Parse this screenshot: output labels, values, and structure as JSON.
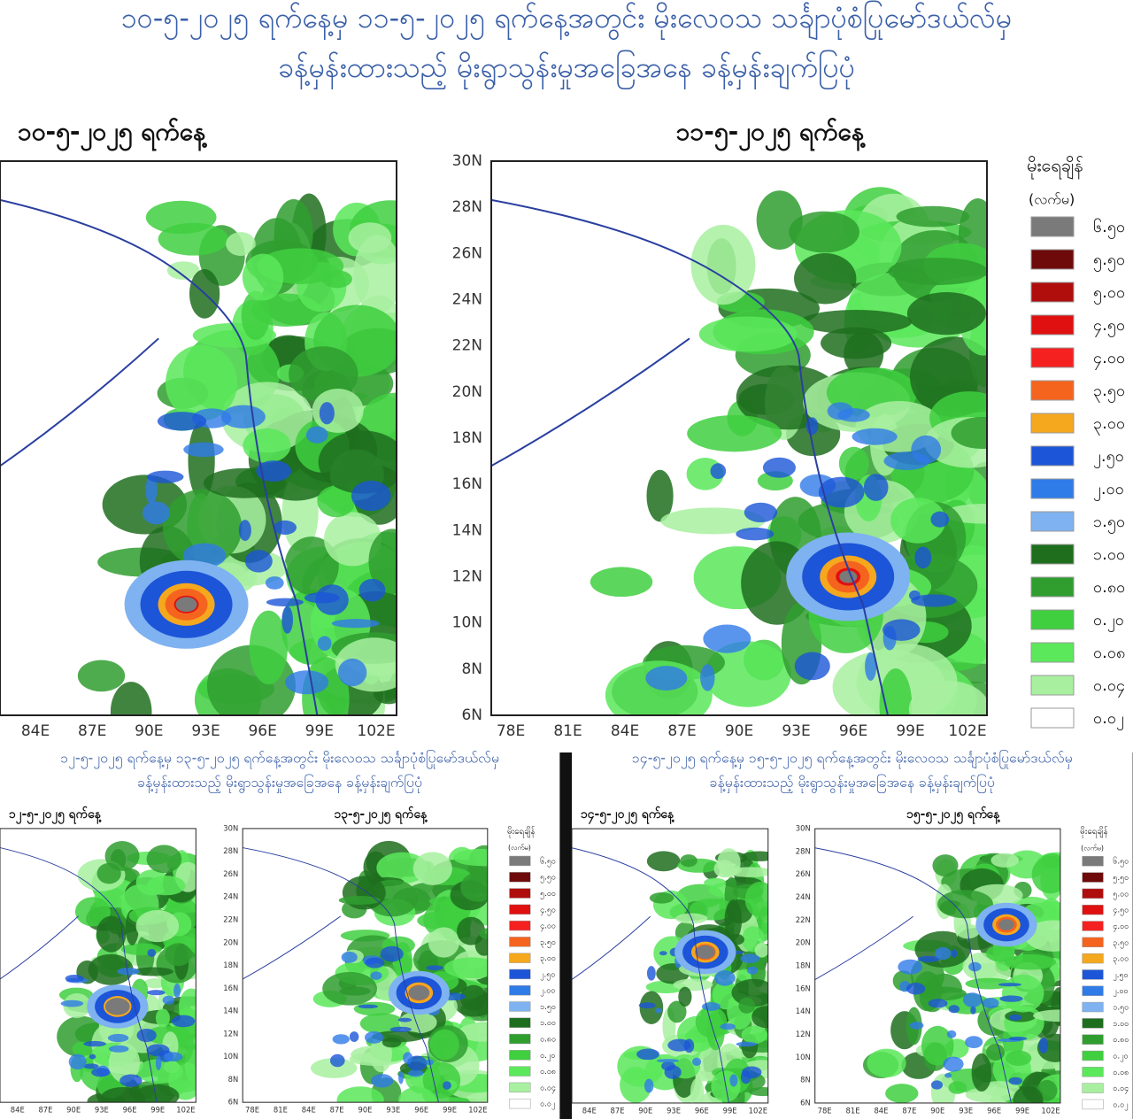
{
  "top": {
    "title": [
      "၁၀-၅-၂၀၂၅ ရက်နေ့မှ ၁၁-၅-၂၀၂၅ ရက်နေ့အတွင်း မိုးလေဝသ သင်္ချာပုံစံပြုမော်ဒယ်လ်မှ",
      "ခန့်မှန်းထားသည့် မိုးရွာသွန်းမှုအခြေအနေ ခန့်မှန်းချက်ပြပုံ"
    ],
    "maps": [
      {
        "title": "၁၀-၅-၂၀၂၅ ရက်နေ့",
        "lon_labels": [
          "84E",
          "87E",
          "90E",
          "93E",
          "96E",
          "99E",
          "102E"
        ]
      },
      {
        "title": "၁၁-၅-၂၀၂၅ ရက်နေ့",
        "lat_labels": [
          "30N",
          "28N",
          "26N",
          "24N",
          "22N",
          "20N",
          "18N",
          "16N",
          "14N",
          "12N",
          "10N",
          "8N",
          "6N"
        ],
        "lon_labels": [
          "78E",
          "81E",
          "84E",
          "87E",
          "90E",
          "93E",
          "96E",
          "99E",
          "102E"
        ]
      }
    ]
  },
  "bottom": [
    {
      "title": [
        "၁၂-၅-၂၀၂၅ ရက်နေ့မှ ၁၃-၅-၂၀၂၅ ရက်နေ့အတွင်း မိုးလေဝသ သင်္ချာပုံစံပြုမော်ဒယ်လ်မှ",
        "ခန့်မှန်းထားသည့် မိုးရွာသွန်းမှုအခြေအနေ ခန့်မှန်းချက်ပြပုံ"
      ],
      "maps": [
        {
          "title": "၁၂-၅-၂၀၂၅ ရက်နေ့",
          "lon_labels": [
            "84E",
            "87E",
            "90E",
            "93E",
            "96E",
            "99E",
            "102E"
          ]
        },
        {
          "title": "၁၃-၅-၂၀၂၅ ရက်နေ့",
          "lat_labels": [
            "30N",
            "28N",
            "26N",
            "24N",
            "22N",
            "20N",
            "18N",
            "16N",
            "14N",
            "12N",
            "10N",
            "8N",
            "6N"
          ],
          "lon_labels": [
            "78E",
            "81E",
            "84E",
            "87E",
            "90E",
            "93E",
            "96E",
            "99E",
            "102E"
          ]
        }
      ]
    },
    {
      "title": [
        "၁၄-၅-၂၀၂၅ ရက်နေ့မှ ၁၅-၅-၂၀၂၅ ရက်နေ့အတွင်း မိုးလေဝသ သင်္ချာပုံစံပြုမော်ဒယ်လ်မှ",
        "ခန့်မှန်းထားသည့် မိုးရွာသွန်းမှုအခြေအနေ ခန့်မှန်းချက်ပြပုံ"
      ],
      "maps": [
        {
          "title": "၁၄-၅-၂၀၂၅ ရက်နေ့",
          "lon_labels": [
            "84E",
            "87E",
            "90E",
            "93E",
            "96E",
            "99E",
            "102E"
          ]
        },
        {
          "title": "၁၅-၅-၂၀၂၅ ရက်နေ့",
          "lat_labels": [
            "30N",
            "28N",
            "26N",
            "24N",
            "22N",
            "20N",
            "18N",
            "16N",
            "14N",
            "12N",
            "10N",
            "8N",
            "6N"
          ],
          "lon_labels": [
            "78E",
            "81E",
            "84E",
            "87E",
            "90E",
            "93E",
            "96E",
            "99E",
            "102E"
          ]
        }
      ]
    }
  ],
  "legend": {
    "title": "မိုးရေချိန်",
    "unit": "(လက်မ)",
    "items": [
      {
        "label": "၆.၅၀",
        "color": "#7a7a7a"
      },
      {
        "label": "၅.၅၀",
        "color": "#6e0a0a"
      },
      {
        "label": "၅.၀၀",
        "color": "#b00d0d"
      },
      {
        "label": "၄.၅၀",
        "color": "#e01010"
      },
      {
        "label": "၄.၀၀",
        "color": "#f52020"
      },
      {
        "label": "၃.၅၀",
        "color": "#f5641e"
      },
      {
        "label": "၃.၀၀",
        "color": "#f5a81e"
      },
      {
        "label": "၂.၅၀",
        "color": "#1c55d8"
      },
      {
        "label": "၂.၀၀",
        "color": "#2f7be8"
      },
      {
        "label": "၁.၅၀",
        "color": "#7fb2f0"
      },
      {
        "label": "၁.၀၀",
        "color": "#1e6e1e"
      },
      {
        "label": "၀.၈၀",
        "color": "#2f9e2f"
      },
      {
        "label": "၀.၂၀",
        "color": "#3fcf3f"
      },
      {
        "label": "၀.၀၈",
        "color": "#5be85b"
      },
      {
        "label": "၀.၀၄",
        "color": "#a8f0a0"
      },
      {
        "label": "၀.၀၂",
        "color": "#ffffff"
      }
    ]
  }
}
